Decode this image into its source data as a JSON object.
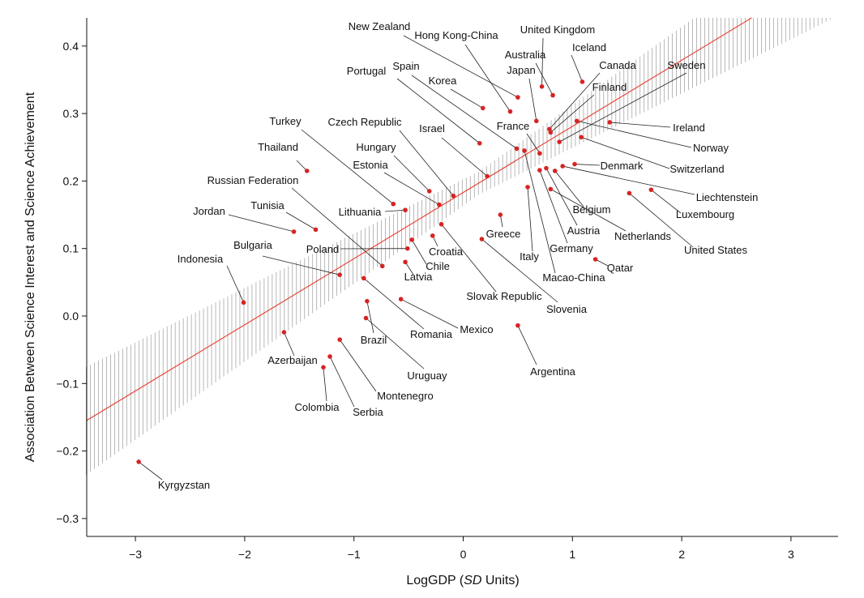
{
  "chart_data": {
    "type": "scatter",
    "xlabel_main": "LogGDP (",
    "xlabel_italic": "SD",
    "xlabel_tail": " Units)",
    "ylabel": "Association Between Science Interest and Science Achievement",
    "xlim": [
      -3.45,
      3.45
    ],
    "ylim": [
      -0.33,
      0.43
    ],
    "xticks": [
      -3,
      -2,
      -1,
      0,
      1,
      2,
      3
    ],
    "yticks": [
      -0.3,
      -0.2,
      -0.1,
      0.0,
      0.1,
      0.2,
      0.3,
      0.4
    ],
    "xtick_labels": [
      "−3",
      "−2",
      "−1",
      "0",
      "1",
      "2",
      "3"
    ],
    "ytick_labels": [
      "−0.3",
      "−0.2",
      "−0.1",
      "0.0",
      "0.1",
      "0.2",
      "0.3",
      "0.4"
    ],
    "fit_line": {
      "intercept": 0.183,
      "slope": 0.098,
      "color": "#e8483c"
    },
    "band": {
      "min_halfwidth": 0.017,
      "spread": 0.0175,
      "center": 0.15,
      "color": "#9a9a9a"
    },
    "point_color": "#d62424",
    "points": [
      {
        "label": "New Zealand",
        "x": 0.5,
        "y": 0.324
      },
      {
        "label": "Hong Kong-China",
        "x": 0.43,
        "y": 0.303
      },
      {
        "label": "United Kingdom",
        "x": 0.72,
        "y": 0.34
      },
      {
        "label": "Iceland",
        "x": 1.09,
        "y": 0.347
      },
      {
        "label": "Australia",
        "x": 0.82,
        "y": 0.327
      },
      {
        "label": "Japan",
        "x": 0.67,
        "y": 0.289
      },
      {
        "label": "Canada",
        "x": 0.79,
        "y": 0.277
      },
      {
        "label": "Finland",
        "x": 0.8,
        "y": 0.272
      },
      {
        "label": "Sweden",
        "x": 0.88,
        "y": 0.258
      },
      {
        "label": "Korea",
        "x": 0.18,
        "y": 0.308
      },
      {
        "label": "Spain",
        "x": 0.49,
        "y": 0.248
      },
      {
        "label": "Portugal",
        "x": 0.15,
        "y": 0.256
      },
      {
        "label": "France",
        "x": 0.7,
        "y": 0.241
      },
      {
        "label": "Ireland",
        "x": 1.34,
        "y": 0.287
      },
      {
        "label": "Norway",
        "x": 1.04,
        "y": 0.289
      },
      {
        "label": "Switzerland",
        "x": 1.08,
        "y": 0.265
      },
      {
        "label": "Denmark",
        "x": 1.02,
        "y": 0.225
      },
      {
        "label": "Israel",
        "x": 0.22,
        "y": 0.207
      },
      {
        "label": "Czech Republic",
        "x": -0.09,
        "y": 0.178
      },
      {
        "label": "Hungary",
        "x": -0.31,
        "y": 0.185
      },
      {
        "label": "Estonia",
        "x": -0.22,
        "y": 0.165
      },
      {
        "label": "Turkey",
        "x": -0.64,
        "y": 0.166
      },
      {
        "label": "Thailand",
        "x": -1.43,
        "y": 0.215
      },
      {
        "label": "Russian Federation",
        "x": -0.74,
        "y": 0.074
      },
      {
        "label": "Lithuania",
        "x": -0.53,
        "y": 0.157
      },
      {
        "label": "Jordan",
        "x": -1.55,
        "y": 0.125
      },
      {
        "label": "Tunisia",
        "x": -1.35,
        "y": 0.128
      },
      {
        "label": "Bulgaria",
        "x": -1.13,
        "y": 0.061
      },
      {
        "label": "Indonesia",
        "x": -2.01,
        "y": 0.02
      },
      {
        "label": "Poland",
        "x": -0.51,
        "y": 0.1
      },
      {
        "label": "Croatia",
        "x": -0.28,
        "y": 0.119
      },
      {
        "label": "Chile",
        "x": -0.47,
        "y": 0.113
      },
      {
        "label": "Latvia",
        "x": -0.53,
        "y": 0.08
      },
      {
        "label": "Slovak Republic",
        "x": -0.2,
        "y": 0.136
      },
      {
        "label": "Greece",
        "x": 0.34,
        "y": 0.15
      },
      {
        "label": "Italy",
        "x": 0.59,
        "y": 0.191
      },
      {
        "label": "Germany",
        "x": 0.7,
        "y": 0.216
      },
      {
        "label": "Austria",
        "x": 0.76,
        "y": 0.219
      },
      {
        "label": "Belgium",
        "x": 0.84,
        "y": 0.215
      },
      {
        "label": "Macao-China",
        "x": 0.56,
        "y": 0.245
      },
      {
        "label": "Slovenia",
        "x": 0.17,
        "y": 0.114
      },
      {
        "label": "Netherlands",
        "x": 0.8,
        "y": 0.188
      },
      {
        "label": "United States",
        "x": 1.52,
        "y": 0.182
      },
      {
        "label": "Luxembourg",
        "x": 1.72,
        "y": 0.187
      },
      {
        "label": "Liechtenstein",
        "x": 0.91,
        "y": 0.222
      },
      {
        "label": "Qatar",
        "x": 1.21,
        "y": 0.084
      },
      {
        "label": "Romania",
        "x": -0.91,
        "y": 0.056
      },
      {
        "label": "Mexico",
        "x": -0.57,
        "y": 0.025
      },
      {
        "label": "Brazil",
        "x": -0.88,
        "y": 0.022
      },
      {
        "label": "Uruguay",
        "x": -0.89,
        "y": -0.003
      },
      {
        "label": "Argentina",
        "x": 0.5,
        "y": -0.014
      },
      {
        "label": "Azerbaijan",
        "x": -1.64,
        "y": -0.024
      },
      {
        "label": "Montenegro",
        "x": -1.13,
        "y": -0.035
      },
      {
        "label": "Serbia",
        "x": -1.22,
        "y": -0.06
      },
      {
        "label": "Colombia",
        "x": -1.28,
        "y": -0.076
      },
      {
        "label": "Kyrgyzstan",
        "x": -2.97,
        "y": -0.216
      }
    ]
  }
}
